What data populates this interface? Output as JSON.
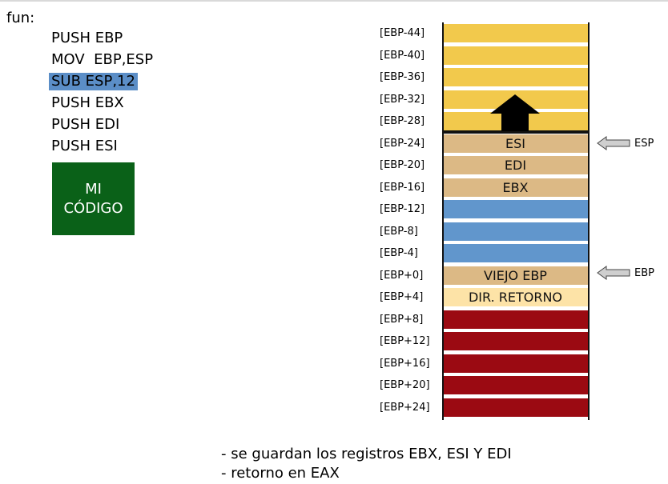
{
  "function_label": "fun:",
  "code_lines": [
    "PUSH EBP",
    "MOV  EBP,ESP",
    "SUB ESP,12",
    "PUSH EBX",
    "PUSH EDI",
    "PUSH ESI"
  ],
  "code_box": {
    "line1": "MI",
    "line2": "CÓDIGO",
    "color": "#0a6118"
  },
  "stack": [
    {
      "offset": "[EBP-44]",
      "content": "",
      "color": "#f2c94c"
    },
    {
      "offset": "[EBP-40]",
      "content": "",
      "color": "#f2c94c"
    },
    {
      "offset": "[EBP-36]",
      "content": "",
      "color": "#f2c94c"
    },
    {
      "offset": "[EBP-32]",
      "content": "",
      "color": "#f2c94c"
    },
    {
      "offset": "[EBP-28]",
      "content": "",
      "color": "#f2c94c"
    },
    {
      "offset": "[EBP-24]",
      "content": "ESI",
      "color": "#dcb985"
    },
    {
      "offset": "[EBP-20]",
      "content": "EDI",
      "color": "#dcb985"
    },
    {
      "offset": "[EBP-16]",
      "content": "EBX",
      "color": "#dcb985"
    },
    {
      "offset": "[EBP-12]",
      "content": "",
      "color": "#6196cc"
    },
    {
      "offset": "[EBP-8]",
      "content": "",
      "color": "#6196cc"
    },
    {
      "offset": "[EBP-4]",
      "content": "",
      "color": "#6196cc"
    },
    {
      "offset": "[EBP+0]",
      "content": "VIEJO EBP",
      "color": "#dcb985"
    },
    {
      "offset": "[EBP+4]",
      "content": "DIR. RETORNO",
      "color": "#fde3a7"
    },
    {
      "offset": "[EBP+8]",
      "content": "",
      "color": "#9b0a12"
    },
    {
      "offset": "[EBP+12]",
      "content": "",
      "color": "#9b0a12"
    },
    {
      "offset": "[EBP+16]",
      "content": "",
      "color": "#9b0a12"
    },
    {
      "offset": "[EBP+20]",
      "content": "",
      "color": "#9b0a12"
    },
    {
      "offset": "[EBP+24]",
      "content": "",
      "color": "#9b0a12"
    }
  ],
  "pointers": {
    "esp": "ESP",
    "ebp": "EBP"
  },
  "notes": [
    "- se guardan los registros EBX, ESI Y EDI",
    "- retorno en EAX"
  ]
}
